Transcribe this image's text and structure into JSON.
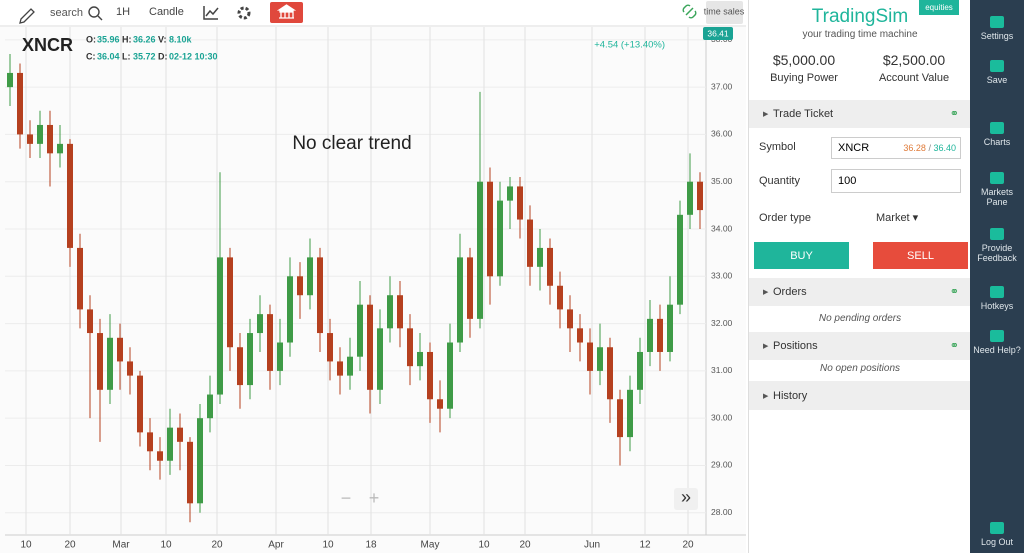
{
  "toolbar": {
    "search": "search",
    "interval": "1H",
    "chart_style": "Candle",
    "time_sales": "time sales"
  },
  "chart_data": {
    "type": "candlestick",
    "symbol": "XNCR",
    "legend": [
      {
        "label": "O:",
        "value": 35.96
      },
      {
        "label": "H:",
        "value": 36.26
      },
      {
        "label": "V:",
        "value": "8.10k"
      },
      {
        "label": "C:",
        "value": 36.04
      },
      {
        "label": "L:",
        "value": 35.72
      },
      {
        "label": "D:",
        "value": "02-12 10:30"
      }
    ],
    "change": "+4.54 (+13.40%)",
    "last_price": 36.41,
    "annotation": "No clear trend",
    "up_color": "#3f9b47",
    "down_color": "#b5401f",
    "grid": true,
    "open": [
      37.0,
      37.3,
      36.0,
      35.8,
      36.2,
      35.6,
      35.8,
      33.6,
      32.3,
      31.8,
      30.6,
      31.7,
      31.2,
      30.9,
      29.7,
      29.3,
      29.1,
      29.8,
      29.5,
      28.2,
      30.0,
      30.5,
      33.4,
      31.5,
      30.7,
      31.8,
      32.2,
      31.0,
      31.6,
      33.0,
      32.6,
      33.4,
      31.8,
      31.2,
      30.9,
      31.3,
      32.4,
      30.6,
      31.9,
      32.6,
      31.9,
      31.1,
      31.4,
      30.4,
      30.2,
      31.6,
      33.4,
      32.1,
      35.0,
      33.0,
      34.6,
      34.9,
      34.2,
      33.2,
      33.6,
      32.8,
      32.3,
      31.9,
      31.6,
      31.0,
      31.5,
      30.4,
      29.6,
      30.6,
      31.4,
      32.1,
      31.4,
      32.4,
      34.3,
      35.0
    ],
    "high": [
      37.7,
      37.5,
      36.3,
      36.5,
      36.5,
      36.2,
      35.9,
      33.9,
      32.6,
      32.1,
      32.2,
      32.0,
      31.5,
      31.0,
      30.0,
      29.6,
      30.2,
      30.1,
      29.6,
      30.3,
      30.9,
      35.2,
      33.6,
      31.8,
      32.1,
      32.6,
      32.4,
      32.1,
      33.4,
      33.3,
      33.8,
      33.6,
      32.1,
      31.5,
      31.7,
      32.9,
      32.6,
      32.3,
      33.0,
      32.9,
      32.2,
      31.8,
      31.6,
      30.8,
      32.0,
      33.9,
      33.6,
      36.9,
      35.3,
      35.0,
      35.1,
      35.1,
      34.5,
      34.0,
      33.8,
      33.1,
      32.6,
      32.2,
      31.9,
      32.0,
      31.7,
      30.6,
      30.9,
      31.7,
      32.5,
      32.4,
      33.0,
      34.6,
      35.6,
      35.2
    ],
    "low": [
      36.6,
      35.7,
      35.5,
      35.5,
      34.9,
      35.3,
      33.2,
      31.9,
      30.0,
      29.5,
      30.3,
      30.6,
      30.5,
      29.4,
      28.9,
      28.7,
      28.8,
      28.9,
      27.8,
      28.0,
      29.7,
      30.3,
      31.0,
      30.2,
      30.4,
      31.4,
      30.6,
      30.7,
      31.3,
      32.1,
      32.3,
      31.4,
      30.8,
      30.5,
      30.6,
      31.0,
      30.1,
      30.3,
      31.6,
      31.5,
      30.7,
      30.8,
      29.9,
      29.7,
      30.0,
      31.4,
      31.7,
      31.9,
      32.4,
      32.8,
      34.0,
      33.8,
      32.8,
      32.7,
      32.4,
      31.9,
      31.4,
      31.2,
      30.5,
      30.7,
      29.9,
      29.0,
      29.3,
      30.3,
      31.1,
      31.0,
      31.2,
      32.2,
      34.0,
      34.0
    ],
    "close": [
      37.3,
      36.0,
      35.8,
      36.2,
      35.6,
      35.8,
      33.6,
      32.3,
      31.8,
      30.6,
      31.7,
      31.2,
      30.9,
      29.7,
      29.3,
      29.1,
      29.8,
      29.5,
      28.2,
      30.0,
      30.5,
      33.4,
      31.5,
      30.7,
      31.8,
      32.2,
      31.0,
      31.6,
      33.0,
      32.6,
      33.4,
      31.8,
      31.2,
      30.9,
      31.3,
      32.4,
      30.6,
      31.9,
      32.6,
      31.9,
      31.1,
      31.4,
      30.4,
      30.2,
      31.6,
      33.4,
      32.1,
      35.0,
      33.0,
      34.6,
      34.9,
      34.2,
      33.2,
      33.6,
      32.8,
      32.3,
      31.9,
      31.6,
      31.0,
      31.5,
      30.4,
      29.6,
      30.6,
      31.4,
      32.1,
      31.4,
      32.4,
      34.3,
      35.0,
      34.4
    ],
    "xlim": [
      -0.5,
      69.6
    ],
    "xticks": [
      {
        "value": 1.6,
        "label": "10"
      },
      {
        "value": 6,
        "label": "20"
      },
      {
        "value": 11.1,
        "label": "Mar"
      },
      {
        "value": 15.6,
        "label": "10"
      },
      {
        "value": 20.7,
        "label": "20"
      },
      {
        "value": 26.6,
        "label": "Apr"
      },
      {
        "value": 31.8,
        "label": "10"
      },
      {
        "value": 36.1,
        "label": "18"
      },
      {
        "value": 42,
        "label": "May"
      },
      {
        "value": 47.4,
        "label": "10"
      },
      {
        "value": 51.5,
        "label": "20"
      },
      {
        "value": 58.2,
        "label": "Jun"
      },
      {
        "value": 63.5,
        "label": "12"
      },
      {
        "value": 67.8,
        "label": "20"
      }
    ],
    "ylim": [
      27.53,
      38.25
    ],
    "yticks": [
      {
        "value": 28,
        "label": "28.00"
      },
      {
        "value": 29,
        "label": "29.00"
      },
      {
        "value": 30,
        "label": "30.00"
      },
      {
        "value": 31,
        "label": "31.00"
      },
      {
        "value": 32,
        "label": "32.00"
      },
      {
        "value": 33,
        "label": "33.00"
      },
      {
        "value": 34,
        "label": "34.00"
      },
      {
        "value": 35,
        "label": "35.00"
      },
      {
        "value": 36,
        "label": "36.00"
      },
      {
        "value": 37,
        "label": "37.00"
      },
      {
        "value": 38,
        "label": "38.00"
      }
    ],
    "controls": {
      "zoom_out": "−",
      "zoom_in": "+",
      "scroll": "»"
    }
  },
  "account": {
    "brand": "TradingSim",
    "badge": "equities",
    "tagline": "your trading time machine",
    "buying_power": "$5,000.00",
    "buying_power_label": "Buying Power",
    "account_value": "$2,500.00",
    "account_value_label": "Account Value"
  },
  "trade_ticket": {
    "title": "Trade Ticket",
    "symbol_label": "Symbol",
    "symbol": "XNCR",
    "bid": "36.28",
    "quote_separator": "/",
    "ask": "36.40",
    "quantity_label": "Quantity",
    "quantity": "100",
    "order_type_label": "Order type",
    "order_type": "Market",
    "buy": "BUY",
    "sell": "SELL"
  },
  "orders": {
    "title": "Orders",
    "empty": "No pending orders"
  },
  "positions": {
    "title": "Positions",
    "empty": "No open positions"
  },
  "history": {
    "title": "History"
  },
  "nav": [
    "Settings",
    "Save",
    "Charts",
    "Markets Pane",
    "Provide Feedback",
    "Hotkeys",
    "Need Help?",
    "Log Out"
  ]
}
